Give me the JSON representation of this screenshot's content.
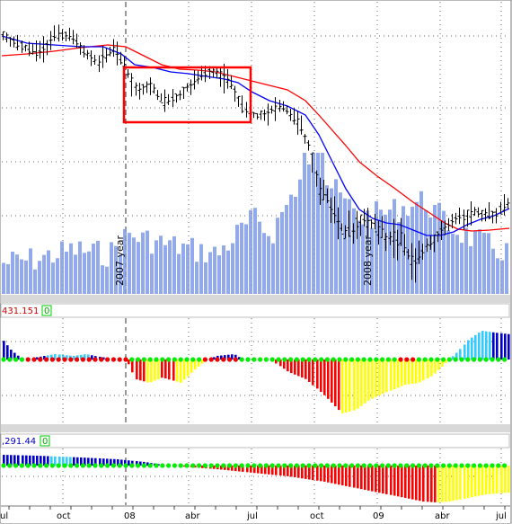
{
  "chart_data": [
    {
      "type": "bar",
      "panel": "price",
      "series": [
        {
          "kind": "ohlc",
          "color": "#000000"
        },
        {
          "kind": "moving_average",
          "color": "#0000ff"
        },
        {
          "kind": "moving_average",
          "color": "#ff0000"
        },
        {
          "kind": "volume",
          "color": "#7f9be8"
        }
      ],
      "year_markers": [
        "2007 year",
        "2008 year"
      ],
      "x_labels": [
        "ul",
        "oct",
        "08",
        "abr",
        "jul",
        "oct",
        "09",
        "abr",
        "jul"
      ],
      "highlight_box": {
        "color": "#ff0000"
      },
      "grid": true
    },
    {
      "type": "bar",
      "panel": "oscillator-1",
      "readout": "431.151",
      "readout_color": "#cc0000",
      "readout2": "0",
      "colors": {
        "pos_strong": "#0000cc",
        "pos_weak": "#33ccff",
        "neg_strong": "#ff0000",
        "neg_weak": "#ffff00",
        "zero_dot_green": "#00ee00",
        "zero_dot_red": "#ee0000"
      }
    },
    {
      "type": "bar",
      "panel": "oscillator-2",
      "readout": ",291.44",
      "readout_color": "#0000cc",
      "readout2": "0",
      "colors": {
        "pos_strong": "#0000cc",
        "pos_weak": "#33ccff",
        "neg_strong": "#ff0000",
        "neg_weak": "#ffff00",
        "zero_dot": "#00ee00"
      }
    }
  ]
}
